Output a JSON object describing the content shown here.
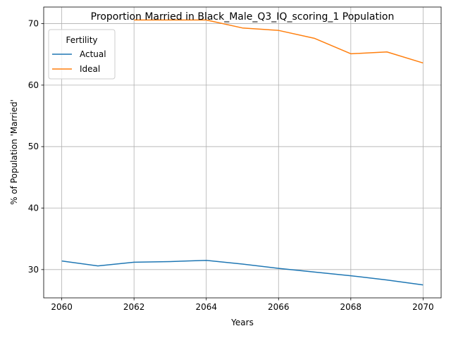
{
  "chart_data": {
    "type": "line",
    "title": "Proportion Married in Black_Male_Q3_IQ_scoring_1 Population",
    "xlabel": "Years",
    "ylabel": "% of Population 'Married'",
    "xlim": [
      2059.5,
      2070.5
    ],
    "ylim": [
      25.4,
      72.7
    ],
    "xticks": [
      2060,
      2062,
      2064,
      2066,
      2068,
      2070
    ],
    "yticks": [
      30,
      40,
      50,
      60,
      70
    ],
    "grid": true,
    "legend": {
      "title": "Fertility",
      "position": "top-left"
    },
    "series": [
      {
        "name": "Actual",
        "color": "#1f77b4",
        "x": [
          2060,
          2061,
          2062,
          2063,
          2064,
          2065,
          2066,
          2067,
          2068,
          2069,
          2070
        ],
        "values": [
          31.4,
          30.6,
          31.2,
          31.3,
          31.5,
          30.9,
          30.2,
          29.6,
          29.0,
          28.3,
          27.5
        ]
      },
      {
        "name": "Ideal",
        "color": "#ff7f0e",
        "x": [
          2062,
          2063,
          2064,
          2065,
          2066,
          2067,
          2068,
          2069,
          2070
        ],
        "values": [
          70.6,
          70.6,
          70.6,
          69.3,
          68.9,
          67.6,
          65.1,
          65.4,
          63.6
        ]
      }
    ]
  }
}
